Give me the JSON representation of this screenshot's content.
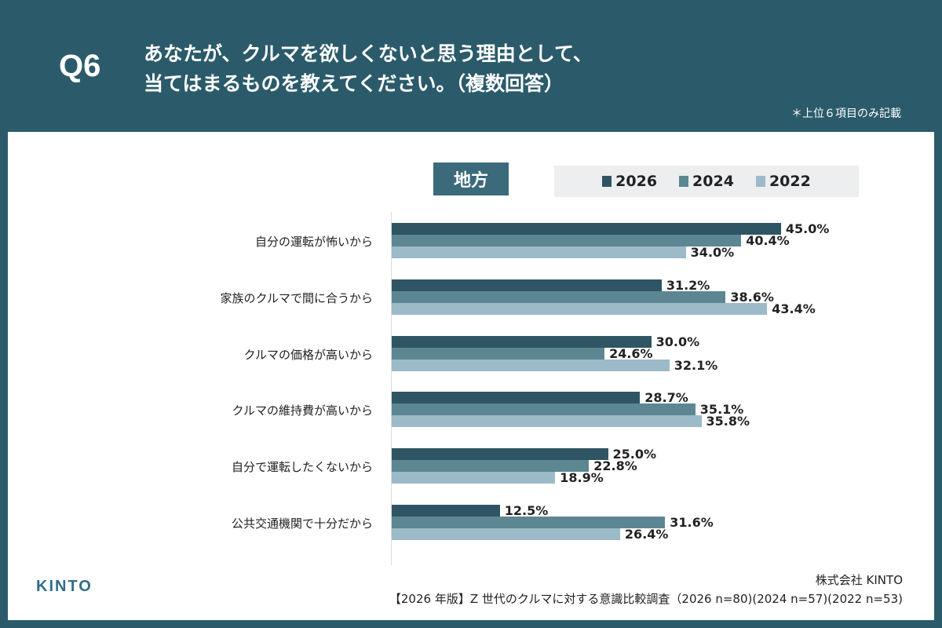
{
  "header": {
    "question_number": "Q6",
    "title_line1": "あなたが、クルマを欲しくないと思う理由として、",
    "title_line2": "当てはまるものを教えてください。（複数回答）",
    "note": "＊上位６項目のみ記載"
  },
  "chart_data": {
    "type": "bar",
    "orientation": "horizontal",
    "region_label": "地方",
    "categories": [
      "自分の運転が怖いから",
      "家族のクルマで間に合うから",
      "クルマの価格が高いから",
      "クルマの維持費が高いから",
      "自分で運転したくないから",
      "公共交通機関で十分だから"
    ],
    "series": [
      {
        "name": "2026",
        "color": "#2f5564",
        "values": [
          45.0,
          31.2,
          30.0,
          28.7,
          25.0,
          12.5
        ]
      },
      {
        "name": "2024",
        "color": "#5c8792",
        "values": [
          40.4,
          38.6,
          24.6,
          35.1,
          22.8,
          31.6
        ]
      },
      {
        "name": "2022",
        "color": "#9cbac8",
        "values": [
          34.0,
          43.4,
          32.1,
          35.8,
          18.9,
          26.4
        ]
      }
    ],
    "value_suffix": "%",
    "legend_position": "top-right",
    "grid": false
  },
  "footer": {
    "logo": "KINTO",
    "company": "株式会社 KINTO",
    "source": "【2026 年版】Z 世代のクルマに対する意識比較調査（2026 n=80)(2024 n=57)(2022 n=53)"
  }
}
